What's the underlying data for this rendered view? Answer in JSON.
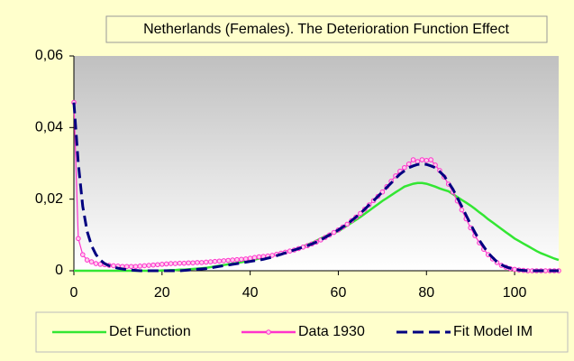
{
  "chart_data": {
    "type": "line",
    "title": "Netherlands (Females). The Deterioration Function Effect",
    "x": [
      0,
      1,
      2,
      3,
      4,
      5,
      6,
      7,
      8,
      9,
      10,
      11,
      12,
      13,
      14,
      15,
      16,
      17,
      18,
      19,
      20,
      21,
      22,
      23,
      24,
      25,
      26,
      27,
      28,
      29,
      30,
      31,
      32,
      33,
      34,
      35,
      36,
      37,
      38,
      39,
      40,
      41,
      42,
      43,
      44,
      45,
      46,
      47,
      48,
      49,
      50,
      51,
      52,
      53,
      54,
      55,
      56,
      57,
      58,
      59,
      60,
      61,
      62,
      63,
      64,
      65,
      66,
      67,
      68,
      69,
      70,
      71,
      72,
      73,
      74,
      75,
      76,
      77,
      78,
      79,
      80,
      81,
      82,
      83,
      84,
      85,
      86,
      87,
      88,
      89,
      90,
      91,
      92,
      93,
      94,
      95,
      96,
      97,
      98,
      99,
      100,
      101,
      102,
      103,
      104,
      105,
      106,
      107,
      108,
      109,
      110
    ],
    "series": [
      {
        "name": "Det Function",
        "color": "#33e633",
        "style": "solid",
        "markers": false,
        "values": [
          0,
          0,
          0,
          0,
          0,
          0,
          0,
          0,
          0,
          0,
          0,
          0,
          0,
          0,
          0,
          0,
          0,
          0,
          0,
          0,
          0.0001,
          0.0001,
          0.0002,
          0.0002,
          0.0003,
          0.0003,
          0.0004,
          0.0005,
          0.0006,
          0.0007,
          0.0008,
          0.001,
          0.0012,
          0.0014,
          0.0016,
          0.0018,
          0.002,
          0.0022,
          0.0024,
          0.0026,
          0.0028,
          0.0031,
          0.0034,
          0.0037,
          0.004,
          0.0043,
          0.0046,
          0.0049,
          0.0052,
          0.0055,
          0.0058,
          0.0063,
          0.0068,
          0.0073,
          0.0078,
          0.0084,
          0.009,
          0.0096,
          0.0102,
          0.0106,
          0.011,
          0.0118,
          0.0126,
          0.0134,
          0.0142,
          0.015,
          0.0159,
          0.0168,
          0.0177,
          0.0186,
          0.0195,
          0.0203,
          0.0211,
          0.0219,
          0.0227,
          0.0235,
          0.0239,
          0.0243,
          0.0245,
          0.0245,
          0.0243,
          0.0239,
          0.0235,
          0.023,
          0.0226,
          0.0222,
          0.0214,
          0.0206,
          0.0198,
          0.019,
          0.0182,
          0.0173,
          0.0163,
          0.0154,
          0.0144,
          0.0135,
          0.0126,
          0.0117,
          0.0108,
          0.0099,
          0.009,
          0.0083,
          0.0076,
          0.0069,
          0.0062,
          0.0055,
          0.0049,
          0.0044,
          0.0039,
          0.0034,
          0.003
        ]
      },
      {
        "name": "Data 1930",
        "color": "#ff33cc",
        "style": "solid",
        "markers": true,
        "values": [
          0.047,
          0.009,
          0.0045,
          0.003,
          0.0025,
          0.002,
          0.0018,
          0.0017,
          0.0015,
          0.0014,
          0.0013,
          0.0012,
          0.0012,
          0.0012,
          0.0012,
          0.0013,
          0.0014,
          0.0015,
          0.0016,
          0.0017,
          0.0018,
          0.0019,
          0.002,
          0.002,
          0.0021,
          0.0021,
          0.0022,
          0.0022,
          0.0023,
          0.0023,
          0.0024,
          0.0025,
          0.0026,
          0.0027,
          0.0028,
          0.0029,
          0.003,
          0.0031,
          0.0032,
          0.0033,
          0.0035,
          0.0037,
          0.0039,
          0.004,
          0.0041,
          0.0043,
          0.0046,
          0.0049,
          0.0052,
          0.0055,
          0.0058,
          0.0062,
          0.0066,
          0.007,
          0.0075,
          0.008,
          0.0086,
          0.0093,
          0.01,
          0.0107,
          0.0114,
          0.0122,
          0.013,
          0.014,
          0.015,
          0.016,
          0.0172,
          0.0184,
          0.0196,
          0.0208,
          0.022,
          0.0235,
          0.025,
          0.0265,
          0.0278,
          0.0288,
          0.0298,
          0.031,
          0.0305,
          0.031,
          0.0308,
          0.031,
          0.0295,
          0.028,
          0.0262,
          0.0242,
          0.022,
          0.0195,
          0.017,
          0.0145,
          0.012,
          0.0098,
          0.0078,
          0.006,
          0.0045,
          0.0033,
          0.0023,
          0.0015,
          0.001,
          0.0006,
          0.0004,
          0.0002,
          0.0001,
          0,
          0,
          0,
          0,
          0,
          0,
          0,
          0
        ]
      },
      {
        "name": "Fit Model IM",
        "color": "#000080",
        "style": "dashed",
        "markers": false,
        "values": [
          0.047,
          0.03,
          0.018,
          0.011,
          0.007,
          0.0045,
          0.003,
          0.002,
          0.0014,
          0.001,
          0.0007,
          0.0005,
          0.0003,
          0.0002,
          0.0001,
          0,
          0,
          0,
          0,
          0,
          0,
          0,
          0,
          0,
          0,
          0.0001,
          0.0002,
          0.0003,
          0.0004,
          0.0005,
          0.0006,
          0.0008,
          0.001,
          0.0012,
          0.0014,
          0.0016,
          0.0018,
          0.002,
          0.0022,
          0.0024,
          0.0026,
          0.0028,
          0.003,
          0.0032,
          0.0035,
          0.0038,
          0.0042,
          0.0046,
          0.005,
          0.0054,
          0.0058,
          0.0062,
          0.0066,
          0.007,
          0.0075,
          0.008,
          0.0086,
          0.0093,
          0.01,
          0.0107,
          0.0114,
          0.0122,
          0.013,
          0.014,
          0.015,
          0.016,
          0.0172,
          0.0184,
          0.0196,
          0.0208,
          0.022,
          0.0233,
          0.0245,
          0.0258,
          0.027,
          0.0279,
          0.0288,
          0.0293,
          0.0297,
          0.0298,
          0.0297,
          0.0293,
          0.0288,
          0.0277,
          0.0265,
          0.0247,
          0.0228,
          0.0204,
          0.018,
          0.0155,
          0.013,
          0.0107,
          0.0085,
          0.0067,
          0.005,
          0.0037,
          0.0025,
          0.0017,
          0.0011,
          0.0007,
          0.0004,
          0.0002,
          0.0001,
          0,
          0,
          0,
          0,
          0,
          0,
          0,
          0
        ]
      }
    ],
    "xlim": [
      0,
      110
    ],
    "xticks": [
      0,
      20,
      40,
      60,
      80,
      100
    ],
    "ylim": [
      0,
      0.06
    ],
    "yticks": [
      0,
      {
        "value": 0.02,
        "label": "0,02"
      },
      {
        "value": 0.04,
        "label": "0,04"
      },
      {
        "value": 0.06,
        "label": "0,06"
      }
    ],
    "legend": "bottom"
  }
}
